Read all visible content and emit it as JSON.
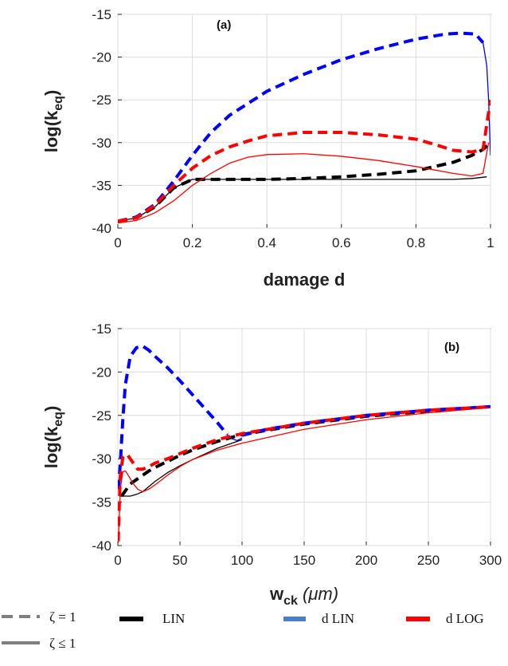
{
  "chart_data": [
    {
      "type": "line",
      "panel_label": "(a)",
      "xlabel": "damage d",
      "ylabel_main": "log(k",
      "ylabel_sub": "eq",
      "ylabel_close": ")",
      "xlim": [
        0,
        1
      ],
      "ylim": [
        -40,
        -15
      ],
      "xticks": [
        0,
        0.2,
        0.4,
        0.6,
        0.8,
        1
      ],
      "xtick_labels": [
        "0",
        "0.2",
        "0.4",
        "0.6",
        "0.8",
        "1"
      ],
      "yticks": [
        -40,
        -35,
        -30,
        -25,
        -20,
        -15
      ],
      "ytick_labels": [
        "-40",
        "-35",
        "-30",
        "-25",
        "-20",
        "-15"
      ],
      "grid": true,
      "series": [
        {
          "name": "LIN",
          "style": "dashed",
          "color": "#000000",
          "x": [
            0,
            0.05,
            0.1,
            0.15,
            0.2,
            0.3,
            0.4,
            0.5,
            0.6,
            0.7,
            0.8,
            0.9,
            0.95,
            0.98,
            1.0
          ],
          "y": [
            -39.2,
            -38.8,
            -37.5,
            -35.3,
            -34.3,
            -34.3,
            -34.3,
            -34.2,
            -34.0,
            -33.7,
            -33.3,
            -32.3,
            -31.5,
            -30.8,
            -30.0
          ]
        },
        {
          "name": "LIN",
          "style": "solid",
          "color": "#000000",
          "x": [
            0,
            0.05,
            0.1,
            0.15,
            0.2,
            0.3,
            0.4,
            0.5,
            0.6,
            0.7,
            0.8,
            0.9,
            0.95,
            0.99
          ],
          "y": [
            -39.2,
            -38.8,
            -37.5,
            -35.3,
            -34.3,
            -34.3,
            -34.3,
            -34.3,
            -34.3,
            -34.3,
            -34.3,
            -34.3,
            -34.2,
            -34.0
          ]
        },
        {
          "name": "d LIN",
          "style": "dashed",
          "color": "#0000ff",
          "x": [
            0,
            0.05,
            0.1,
            0.15,
            0.2,
            0.25,
            0.3,
            0.4,
            0.5,
            0.6,
            0.7,
            0.8,
            0.88,
            0.92,
            0.96,
            0.98
          ],
          "y": [
            -39.2,
            -38.7,
            -37.2,
            -34.5,
            -31.5,
            -28.8,
            -26.8,
            -24.0,
            -22.0,
            -20.3,
            -19.0,
            -17.9,
            -17.3,
            -17.2,
            -17.3,
            -18.3
          ]
        },
        {
          "name": "d LIN",
          "style": "solid",
          "color": "#0000ff",
          "x": [
            0.98,
            0.99,
            0.995,
            0.998,
            1.0
          ],
          "y": [
            -18.3,
            -21.0,
            -25.0,
            -29.0,
            -31.5
          ]
        },
        {
          "name": "d LOG",
          "style": "dashed",
          "color": "#ff0000",
          "x": [
            0,
            0.05,
            0.1,
            0.15,
            0.2,
            0.25,
            0.3,
            0.35,
            0.4,
            0.5,
            0.6,
            0.7,
            0.8,
            0.85,
            0.9,
            0.95,
            0.98,
            1.0
          ],
          "y": [
            -39.2,
            -38.8,
            -37.3,
            -35.0,
            -33.0,
            -31.5,
            -30.5,
            -29.8,
            -29.2,
            -28.8,
            -28.8,
            -29.1,
            -29.6,
            -30.2,
            -30.9,
            -31.1,
            -30.8,
            -25.0
          ]
        },
        {
          "name": "d LOG",
          "style": "solid",
          "color": "#ff0000",
          "x": [
            0,
            0.05,
            0.1,
            0.15,
            0.2,
            0.25,
            0.3,
            0.35,
            0.4,
            0.5,
            0.6,
            0.7,
            0.8,
            0.9,
            0.95,
            0.98,
            0.995
          ],
          "y": [
            -39.4,
            -39.1,
            -38.2,
            -36.8,
            -35.0,
            -33.6,
            -32.4,
            -31.7,
            -31.4,
            -31.3,
            -31.6,
            -32.1,
            -32.8,
            -33.6,
            -33.9,
            -33.6,
            -30.0
          ]
        }
      ]
    },
    {
      "type": "line",
      "panel_label": "(b)",
      "xlabel_main": "w",
      "xlabel_sub": "ck",
      "xlabel_unit": " (μm)",
      "ylabel_main": "log(k",
      "ylabel_sub": "eq",
      "ylabel_close": ")",
      "xlim": [
        0,
        300
      ],
      "ylim": [
        -40,
        -15
      ],
      "xticks": [
        0,
        50,
        100,
        150,
        200,
        250,
        300
      ],
      "xtick_labels": [
        "0",
        "50",
        "100",
        "150",
        "200",
        "250",
        "300"
      ],
      "yticks": [
        -40,
        -35,
        -30,
        -25,
        -20,
        -15
      ],
      "ytick_labels": [
        "-40",
        "-35",
        "-30",
        "-25",
        "-20",
        "-15"
      ],
      "grid": true,
      "series": [
        {
          "name": "LIN",
          "style": "dashed",
          "color": "#000000",
          "x": [
            3,
            6,
            10,
            15,
            20,
            25,
            30,
            40,
            50,
            60,
            80,
            100,
            150,
            200,
            250,
            300
          ],
          "y": [
            -34.3,
            -33.7,
            -32.9,
            -32.4,
            -31.9,
            -31.4,
            -31.0,
            -30.3,
            -29.6,
            -29.0,
            -28.0,
            -27.2,
            -26.0,
            -25.1,
            -24.5,
            -24.0
          ]
        },
        {
          "name": "LIN",
          "style": "solid",
          "color": "#000000",
          "x": [
            0.5,
            2,
            5,
            10,
            15,
            20,
            25,
            30,
            40,
            50,
            60,
            80,
            100
          ],
          "y": [
            -34.2,
            -34.3,
            -34.3,
            -34.3,
            -34.1,
            -33.8,
            -33.2,
            -32.6,
            -31.6,
            -30.8,
            -30.1,
            -28.8,
            -27.8
          ]
        },
        {
          "name": "d LIN",
          "style": "dashed",
          "color": "#0000ff",
          "x": [
            0.5,
            2,
            4,
            6,
            10,
            15,
            20,
            25,
            30,
            40,
            50,
            60,
            70,
            80,
            88
          ],
          "y": [
            -33.5,
            -30.5,
            -25.5,
            -21.5,
            -18.2,
            -17.2,
            -17.0,
            -17.5,
            -18.2,
            -19.5,
            -21.0,
            -22.6,
            -24.2,
            -25.8,
            -27.2
          ]
        },
        {
          "name": "d LIN",
          "style": "solid",
          "color": "#0000ff",
          "x": [
            88,
            92,
            96,
            100
          ],
          "y": [
            -27.2,
            -27.7,
            -27.9,
            -27.6
          ]
        },
        {
          "name": "d LIN",
          "style": "dashed",
          "color": "#0000ff",
          "x": [
            100,
            120,
            150,
            200,
            250,
            300
          ],
          "y": [
            -27.3,
            -26.6,
            -25.9,
            -25.0,
            -24.4,
            -24.0
          ]
        },
        {
          "name": "d LOG",
          "style": "dashed",
          "color": "#ff0000",
          "x": [
            0.3,
            1,
            2,
            4,
            6,
            8,
            12,
            16,
            20,
            25,
            30,
            40,
            50,
            60,
            80,
            100,
            150,
            200,
            250,
            300
          ],
          "y": [
            -39.5,
            -36.0,
            -32.0,
            -29.8,
            -29.5,
            -29.6,
            -30.4,
            -31.2,
            -31.2,
            -30.9,
            -30.5,
            -30.0,
            -29.4,
            -28.8,
            -27.8,
            -27.1,
            -25.9,
            -25.0,
            -24.4,
            -24.0
          ]
        },
        {
          "name": "d LOG",
          "style": "solid",
          "color": "#ff0000",
          "x": [
            0.3,
            1,
            2,
            4,
            6,
            8,
            12,
            16,
            20,
            25,
            30,
            40,
            50,
            60,
            80,
            100,
            150,
            200,
            250,
            300
          ],
          "y": [
            -39.7,
            -37.5,
            -33.5,
            -31.5,
            -31.4,
            -31.8,
            -32.8,
            -33.5,
            -33.8,
            -33.5,
            -33.0,
            -31.9,
            -30.9,
            -30.1,
            -29.0,
            -28.2,
            -26.6,
            -25.5,
            -24.7,
            -24.1
          ]
        }
      ]
    }
  ],
  "legend": {
    "style_entries": [
      {
        "label": "ζ = 1",
        "style": "dashed",
        "color": "#7f7f7f"
      },
      {
        "label": "ζ ≤ 1",
        "style": "solid",
        "color": "#7f7f7f"
      }
    ],
    "color_entries": [
      {
        "label": "LIN",
        "color": "#000000"
      },
      {
        "label": "d LIN",
        "color": "#4a7fd0"
      },
      {
        "label": "d LOG",
        "color": "#ff0000"
      }
    ]
  }
}
